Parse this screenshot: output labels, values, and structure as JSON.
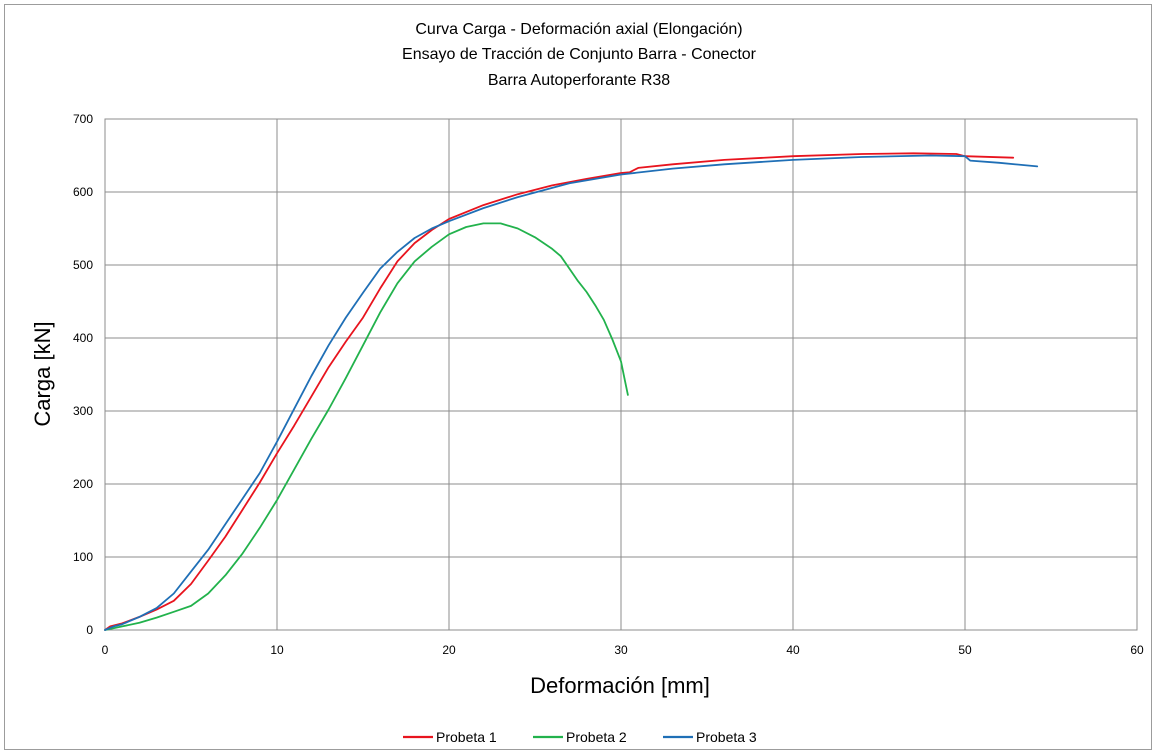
{
  "chart_data": {
    "type": "line",
    "title_lines": [
      "Curva Carga - Deformación axial (Elongación)",
      "Ensayo de Tracción  de Conjunto  Barra - Conector",
      "Barra Autoperforante R38"
    ],
    "xlabel": "Deformación  [mm]",
    "ylabel": "Carga [kN]",
    "xlim": [
      0,
      60
    ],
    "ylim": [
      0,
      700
    ],
    "xticks": [
      "0",
      "10",
      "20",
      "30",
      "40",
      "50",
      "60"
    ],
    "yticks": [
      "0",
      "100",
      "200",
      "300",
      "400",
      "500",
      "600",
      "700"
    ],
    "grid": true,
    "legend_position": "bottom",
    "series": [
      {
        "name": "Probeta 1",
        "color": "#e8141e",
        "x": [
          0,
          0.3,
          1,
          2,
          3,
          4,
          5,
          6,
          7,
          8,
          9,
          10,
          11,
          12,
          13,
          14,
          15,
          16,
          17,
          18,
          19,
          20,
          22,
          24,
          26,
          28,
          30,
          30.5,
          31,
          33,
          36,
          40,
          44,
          47,
          49.5,
          50,
          52.8
        ],
        "y": [
          0,
          5,
          9,
          18,
          28,
          40,
          63,
          95,
          128,
          165,
          202,
          242,
          280,
          320,
          360,
          395,
          428,
          468,
          505,
          530,
          548,
          563,
          582,
          597,
          609,
          618,
          626,
          627,
          633,
          638,
          644,
          649,
          652,
          653,
          652,
          649,
          647
        ]
      },
      {
        "name": "Probeta 2",
        "color": "#22b24c",
        "x": [
          0,
          1,
          2,
          3,
          4,
          5,
          6,
          7,
          8,
          9,
          10,
          11,
          12,
          13,
          14,
          15,
          16,
          17,
          18,
          19,
          20,
          21,
          22,
          23,
          24,
          25,
          26,
          26.5,
          27,
          27.5,
          28,
          28.5,
          29,
          29.5,
          30,
          30.2,
          30.4
        ],
        "y": [
          0,
          5,
          10,
          17,
          25,
          33,
          50,
          75,
          105,
          140,
          178,
          220,
          262,
          302,
          345,
          390,
          435,
          475,
          505,
          525,
          542,
          552,
          557,
          557,
          550,
          538,
          522,
          512,
          495,
          478,
          463,
          445,
          425,
          398,
          368,
          345,
          322
        ]
      },
      {
        "name": "Probeta 3",
        "color": "#1f6fb6",
        "x": [
          0,
          0.5,
          1,
          2,
          3,
          4,
          5,
          6,
          7,
          8,
          9,
          10,
          11,
          12,
          13,
          14,
          15,
          16,
          17,
          18,
          19,
          20,
          22,
          24,
          27,
          30,
          33,
          36,
          40,
          44,
          48,
          50,
          50.3,
          52,
          54.2
        ],
        "y": [
          0,
          5,
          8,
          18,
          30,
          50,
          80,
          110,
          145,
          180,
          215,
          258,
          303,
          348,
          390,
          428,
          462,
          495,
          518,
          537,
          550,
          560,
          578,
          593,
          612,
          624,
          632,
          638,
          644,
          648,
          650,
          649,
          643,
          640,
          635
        ]
      }
    ]
  }
}
